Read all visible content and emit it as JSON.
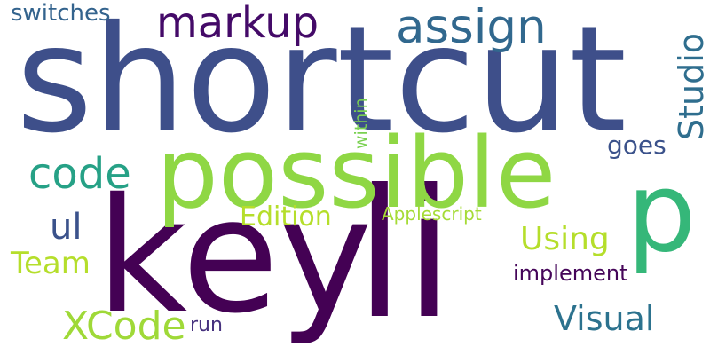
{
  "words": [
    {
      "text": "shortcut",
      "color": "#3e4f8a",
      "orientation": "horizontal"
    },
    {
      "text": "key",
      "color": "#440154",
      "orientation": "horizontal"
    },
    {
      "text": "li",
      "color": "#440154",
      "orientation": "horizontal"
    },
    {
      "text": "possible",
      "color": "#8fd744",
      "orientation": "horizontal"
    },
    {
      "text": "p",
      "color": "#35b779",
      "orientation": "horizontal"
    },
    {
      "text": "markup",
      "color": "#440a68",
      "orientation": "horizontal"
    },
    {
      "text": "assign",
      "color": "#31688e",
      "orientation": "horizontal"
    },
    {
      "text": "code",
      "color": "#26a186",
      "orientation": "horizontal"
    },
    {
      "text": "Studio",
      "color": "#2f6e8e",
      "orientation": "vertical"
    },
    {
      "text": "XCode",
      "color": "#9fd938",
      "orientation": "horizontal"
    },
    {
      "text": "ul",
      "color": "#3b528b",
      "orientation": "horizontal"
    },
    {
      "text": "Team",
      "color": "#b5de2b",
      "orientation": "horizontal"
    },
    {
      "text": "Using",
      "color": "#b5de2b",
      "orientation": "horizontal"
    },
    {
      "text": "Visual",
      "color": "#2c728e",
      "orientation": "horizontal"
    },
    {
      "text": "switches",
      "color": "#33638d",
      "orientation": "horizontal"
    },
    {
      "text": "Edition",
      "color": "#b5de2b",
      "orientation": "horizontal"
    },
    {
      "text": "goes",
      "color": "#3b528b",
      "orientation": "horizontal"
    },
    {
      "text": "within",
      "color": "#7ad151",
      "orientation": "vertical"
    },
    {
      "text": "implement",
      "color": "#450559",
      "orientation": "horizontal"
    },
    {
      "text": "Applescript",
      "color": "#a5db36",
      "orientation": "horizontal"
    },
    {
      "text": "run",
      "color": "#46317e",
      "orientation": "horizontal"
    }
  ]
}
